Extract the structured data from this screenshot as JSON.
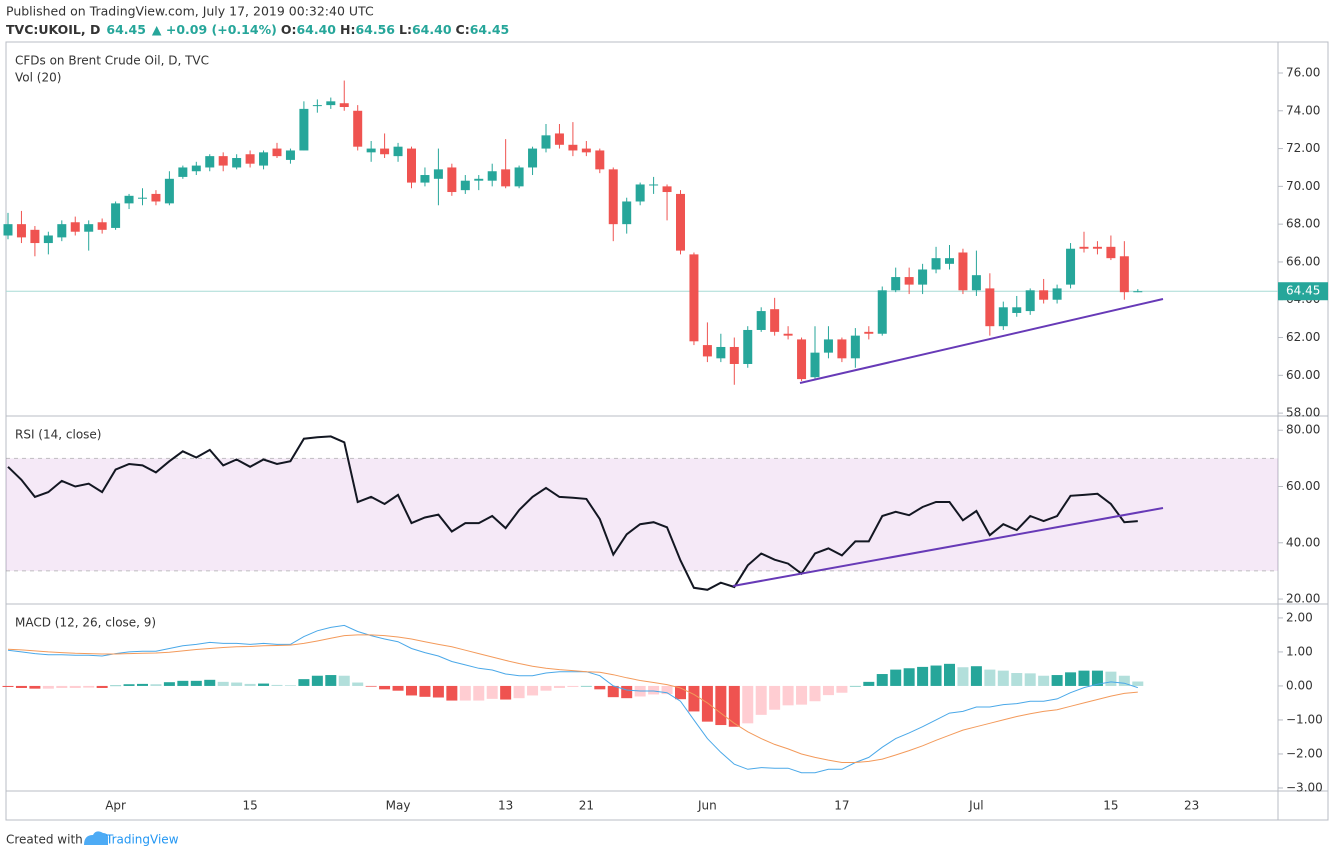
{
  "header": {
    "published": "Published on TradingView.com, July 17, 2019 00:32:40 UTC",
    "symbol": "TVC:UKOIL, D",
    "last": "64.45",
    "change": "▲ +0.09 (+0.14%)",
    "open_label": "O:",
    "open": "64.40",
    "high_label": "H:",
    "high": "64.56",
    "low_label": "L:",
    "low": "64.40",
    "close_label": "C:",
    "close": "64.45"
  },
  "chart_data": [
    {
      "type": "candlestick",
      "title": "CFDs on Brent Crude Oil, D, TVC",
      "subtitle": "Vol (20)",
      "categories": [
        null,
        null,
        null,
        null,
        null,
        null,
        null,
        null,
        "Apr",
        null,
        null,
        null,
        null,
        null,
        null,
        null,
        null,
        null,
        "15",
        null,
        null,
        null,
        null,
        null,
        null,
        null,
        null,
        null,
        null,
        "May",
        null,
        null,
        null,
        null,
        null,
        null,
        null,
        "13",
        null,
        null,
        null,
        null,
        null,
        "21",
        null,
        null,
        null,
        null,
        null,
        null,
        null,
        null,
        "Jun",
        null,
        null,
        null,
        null,
        null,
        null,
        null,
        null,
        null,
        "17",
        null,
        null,
        null,
        null,
        null,
        null,
        null,
        null,
        null,
        "Jul",
        null,
        null,
        null,
        null,
        null,
        null,
        null,
        null,
        null,
        "15",
        null,
        null,
        null,
        null,
        null,
        "23",
        null,
        null,
        null,
        null,
        null,
        null
      ],
      "open": [
        67.4,
        68.0,
        67.7,
        67.0,
        67.3,
        68.1,
        67.6,
        68.1,
        67.8,
        69.1,
        69.4,
        69.6,
        69.1,
        70.5,
        70.8,
        71.0,
        71.6,
        71.0,
        71.7,
        71.1,
        72.0,
        71.4,
        71.9,
        74.3,
        74.3,
        74.4,
        74.0,
        71.8,
        72.0,
        71.6,
        72.0,
        70.2,
        70.4,
        71.0,
        69.8,
        70.3,
        70.3,
        70.9,
        70.0,
        71.0,
        72.0,
        72.8,
        72.2,
        72.0,
        71.9,
        70.9,
        68.0,
        69.2,
        70.1,
        70.0,
        69.6,
        66.4,
        61.6,
        60.9,
        61.5,
        60.6,
        62.4,
        63.5,
        62.2,
        61.9,
        59.9,
        61.2,
        61.9,
        60.9,
        62.3,
        62.2,
        64.5,
        65.2,
        64.8,
        65.6,
        65.9,
        66.5,
        64.5,
        64.6,
        62.6,
        63.3,
        63.4,
        64.5,
        64.0,
        64.8,
        66.8,
        66.8,
        66.8,
        66.3,
        64.4,
        null,
        null,
        null,
        null,
        null,
        null,
        null,
        null,
        null,
        null
      ],
      "high": [
        68.6,
        68.7,
        67.9,
        67.6,
        68.2,
        68.4,
        68.2,
        68.3,
        69.2,
        69.6,
        69.9,
        69.8,
        70.8,
        71.1,
        71.3,
        71.7,
        71.8,
        71.7,
        71.9,
        71.9,
        72.3,
        72.0,
        74.5,
        74.6,
        74.7,
        75.6,
        74.3,
        72.4,
        72.8,
        72.3,
        72.1,
        71.0,
        72.0,
        71.2,
        70.6,
        70.6,
        71.2,
        72.5,
        71.1,
        72.1,
        73.3,
        73.3,
        73.4,
        72.4,
        72.0,
        71.0,
        69.4,
        70.2,
        70.5,
        70.1,
        69.8,
        66.5,
        62.8,
        62.2,
        62.0,
        62.6,
        63.6,
        64.1,
        62.6,
        62.0,
        62.6,
        62.6,
        62.0,
        62.5,
        62.6,
        64.7,
        65.7,
        65.7,
        65.9,
        66.8,
        66.9,
        66.7,
        66.6,
        65.4,
        63.9,
        64.2,
        64.6,
        65.1,
        64.8,
        67.0,
        67.6,
        67.1,
        67.4,
        67.1,
        64.56,
        null,
        null,
        null,
        null,
        null,
        null,
        null,
        null,
        null,
        null
      ],
      "low": [
        67.2,
        67.0,
        66.3,
        66.4,
        67.1,
        67.4,
        66.6,
        67.5,
        67.7,
        68.8,
        69.0,
        69.0,
        69.0,
        70.4,
        70.6,
        70.8,
        70.8,
        70.9,
        71.0,
        70.9,
        71.5,
        71.2,
        71.9,
        73.9,
        74.1,
        74.0,
        71.9,
        71.3,
        71.5,
        71.3,
        69.9,
        70.0,
        69.0,
        69.5,
        69.6,
        69.8,
        70.0,
        69.9,
        69.9,
        70.6,
        71.8,
        72.0,
        71.6,
        71.6,
        70.7,
        67.1,
        67.5,
        69.0,
        69.6,
        68.2,
        66.4,
        61.6,
        60.7,
        60.7,
        59.5,
        60.4,
        62.3,
        62.1,
        61.9,
        59.7,
        59.8,
        60.9,
        60.7,
        60.4,
        61.9,
        62.1,
        64.4,
        64.3,
        64.3,
        65.4,
        65.6,
        64.3,
        64.2,
        62.1,
        62.4,
        63.1,
        63.2,
        63.8,
        63.8,
        64.6,
        66.5,
        66.4,
        66.1,
        64.0,
        64.4,
        null,
        null,
        null,
        null,
        null,
        null,
        null,
        null,
        null,
        null
      ],
      "close": [
        68.0,
        67.3,
        67.0,
        67.4,
        68.0,
        67.6,
        68.0,
        67.7,
        69.1,
        69.5,
        69.4,
        69.2,
        70.4,
        71.0,
        71.1,
        71.6,
        71.1,
        71.5,
        71.2,
        71.8,
        71.6,
        71.9,
        74.1,
        74.3,
        74.5,
        74.2,
        72.1,
        72.0,
        71.7,
        72.1,
        70.2,
        70.6,
        70.9,
        69.7,
        70.3,
        70.4,
        70.8,
        70.0,
        71.0,
        72.0,
        72.7,
        72.2,
        71.9,
        71.8,
        70.9,
        68.0,
        69.2,
        70.1,
        70.1,
        69.7,
        66.6,
        61.8,
        61.0,
        61.5,
        60.6,
        62.4,
        63.4,
        62.3,
        62.1,
        59.8,
        61.2,
        61.9,
        60.9,
        62.1,
        62.2,
        64.5,
        65.2,
        64.8,
        65.6,
        66.2,
        66.2,
        64.5,
        65.3,
        62.6,
        63.6,
        63.6,
        64.5,
        64.0,
        64.6,
        66.7,
        66.7,
        66.7,
        66.2,
        64.4,
        64.45,
        null,
        null,
        null,
        null,
        null,
        null,
        null,
        null,
        null,
        null
      ],
      "up_color": "#26a69a",
      "down_color": "#ef5350",
      "price_line": 64.45,
      "ylim": [
        57.9,
        77.64
      ],
      "yticks": [
        {
          "value": 58,
          "label": "58.00"
        },
        {
          "value": 60,
          "label": "60.00"
        },
        {
          "value": 62,
          "label": "62.00"
        },
        {
          "value": 64,
          "label": "64.00"
        },
        {
          "value": 66,
          "label": "66.00"
        },
        {
          "value": 68,
          "label": "68.00"
        },
        {
          "value": 70,
          "label": "70.00"
        },
        {
          "value": 72,
          "label": "72.00"
        },
        {
          "value": 74,
          "label": "74.00"
        },
        {
          "value": 76,
          "label": "76.00"
        }
      ]
    },
    {
      "type": "line",
      "title": "RSI (14, close)",
      "color": "#131722",
      "values": [
        67,
        62.4,
        56.3,
        58,
        62,
        60,
        61,
        58,
        66,
        68,
        67.5,
        65,
        69,
        72.5,
        70.3,
        73,
        67.5,
        69.6,
        67,
        69.6,
        68,
        69,
        77,
        77.5,
        77.8,
        75.7,
        54.5,
        56.3,
        53.8,
        57,
        47,
        49,
        50,
        44,
        47,
        47,
        49.5,
        45.2,
        51.6,
        56.3,
        59.5,
        56.3,
        56,
        55.6,
        48.4,
        35.8,
        43,
        46.6,
        47.3,
        45.5,
        33.7,
        24,
        23.3,
        25.8,
        24.3,
        32,
        36.2,
        34,
        32.6,
        29,
        36.2,
        38,
        35.5,
        40.5,
        40.5,
        49.5,
        51,
        49.8,
        52.7,
        54.5,
        54.5,
        48,
        51.3,
        42.7,
        46.6,
        44.5,
        49.5,
        47.7,
        49.5,
        56.7,
        57,
        57.4,
        53.8,
        47.3,
        47.7,
        null,
        null,
        null,
        null,
        null,
        null,
        null,
        null,
        null,
        null
      ],
      "band": [
        30,
        70
      ],
      "band_color": "#9c27b0",
      "ylim": [
        18.6,
        84.7
      ],
      "yticks": [
        {
          "value": 20,
          "label": "20.00"
        },
        {
          "value": 40,
          "label": "40.00"
        },
        {
          "value": 60,
          "label": "60.00"
        },
        {
          "value": 80,
          "label": "80.00"
        }
      ]
    },
    {
      "type": "combo",
      "title": "MACD (12, 26, close, 9)",
      "series": [
        {
          "type": "bar",
          "colors": [
            "#26a69a",
            "#b2dfdb",
            "#ffcdd2",
            "#ef5350"
          ],
          "values": [
            -0.03,
            -0.06,
            -0.08,
            -0.08,
            -0.06,
            -0.06,
            -0.05,
            -0.06,
            0.01,
            0.05,
            0.06,
            0.05,
            0.11,
            0.15,
            0.15,
            0.18,
            0.12,
            0.1,
            0.06,
            0.07,
            0.03,
            0.02,
            0.2,
            0.3,
            0.32,
            0.3,
            0.1,
            -0.02,
            -0.1,
            -0.14,
            -0.28,
            -0.32,
            -0.34,
            -0.43,
            -0.43,
            -0.43,
            -0.38,
            -0.4,
            -0.36,
            -0.28,
            -0.14,
            -0.06,
            -0.03,
            0.0,
            -0.1,
            -0.33,
            -0.36,
            -0.31,
            -0.25,
            -0.24,
            -0.39,
            -0.75,
            -1.05,
            -1.15,
            -1.2,
            -1.1,
            -0.85,
            -0.7,
            -0.57,
            -0.55,
            -0.45,
            -0.27,
            -0.2,
            0.0,
            0.12,
            0.35,
            0.48,
            0.52,
            0.56,
            0.6,
            0.65,
            0.55,
            0.58,
            0.48,
            0.45,
            0.38,
            0.37,
            0.3,
            0.32,
            0.4,
            0.45,
            0.45,
            0.42,
            0.3,
            0.13,
            null,
            null,
            null,
            null,
            null,
            null,
            null,
            null,
            null,
            null
          ]
        },
        {
          "type": "line",
          "color": "#4aa8e8",
          "values": [
            1.05,
            1.0,
            0.95,
            0.92,
            0.92,
            0.9,
            0.9,
            0.88,
            0.95,
            1.0,
            1.02,
            1.02,
            1.1,
            1.18,
            1.22,
            1.28,
            1.25,
            1.25,
            1.22,
            1.25,
            1.22,
            1.22,
            1.45,
            1.62,
            1.72,
            1.78,
            1.6,
            1.48,
            1.38,
            1.3,
            1.1,
            0.98,
            0.88,
            0.72,
            0.62,
            0.52,
            0.47,
            0.35,
            0.3,
            0.3,
            0.38,
            0.42,
            0.42,
            0.42,
            0.3,
            0.0,
            -0.12,
            -0.15,
            -0.15,
            -0.2,
            -0.45,
            -1.0,
            -1.55,
            -1.95,
            -2.3,
            -2.45,
            -2.4,
            -2.42,
            -2.42,
            -2.55,
            -2.55,
            -2.45,
            -2.45,
            -2.25,
            -2.1,
            -1.8,
            -1.55,
            -1.38,
            -1.2,
            -1.0,
            -0.8,
            -0.75,
            -0.62,
            -0.62,
            -0.55,
            -0.52,
            -0.45,
            -0.45,
            -0.38,
            -0.2,
            -0.05,
            0.05,
            0.12,
            0.08,
            -0.05,
            null,
            null,
            null,
            null,
            null,
            null,
            null,
            null,
            null,
            null
          ]
        },
        {
          "type": "line",
          "color": "#f39a5b",
          "values": [
            1.08,
            1.06,
            1.03,
            1.0,
            0.98,
            0.96,
            0.95,
            0.94,
            0.94,
            0.95,
            0.96,
            0.97,
            0.99,
            1.03,
            1.07,
            1.1,
            1.13,
            1.15,
            1.16,
            1.18,
            1.19,
            1.2,
            1.25,
            1.32,
            1.4,
            1.48,
            1.5,
            1.5,
            1.48,
            1.44,
            1.38,
            1.3,
            1.22,
            1.15,
            1.05,
            0.95,
            0.85,
            0.75,
            0.66,
            0.58,
            0.52,
            0.48,
            0.45,
            0.42,
            0.4,
            0.33,
            0.24,
            0.16,
            0.1,
            0.04,
            -0.06,
            -0.25,
            -0.5,
            -0.8,
            -1.1,
            -1.35,
            -1.55,
            -1.72,
            -1.85,
            -2.0,
            -2.1,
            -2.18,
            -2.25,
            -2.25,
            -2.22,
            -2.15,
            -2.03,
            -1.9,
            -1.76,
            -1.6,
            -1.45,
            -1.3,
            -1.2,
            -1.1,
            -1.0,
            -0.9,
            -0.82,
            -0.75,
            -0.7,
            -0.6,
            -0.5,
            -0.4,
            -0.3,
            -0.22,
            -0.18,
            null,
            null,
            null,
            null,
            null,
            null,
            null,
            null,
            null,
            null
          ]
        }
      ],
      "ylim": [
        -3.06,
        2.38
      ],
      "yticks": [
        {
          "value": -3,
          "label": "−3.00"
        },
        {
          "value": -2,
          "label": "−2.00"
        },
        {
          "value": -1,
          "label": "−1.00"
        },
        {
          "value": 0,
          "label": "0.00"
        },
        {
          "value": 1,
          "label": "1.00"
        },
        {
          "value": 2,
          "label": "2.00"
        }
      ]
    }
  ],
  "footer": {
    "text": "Created with",
    "brand": "TradingView"
  }
}
